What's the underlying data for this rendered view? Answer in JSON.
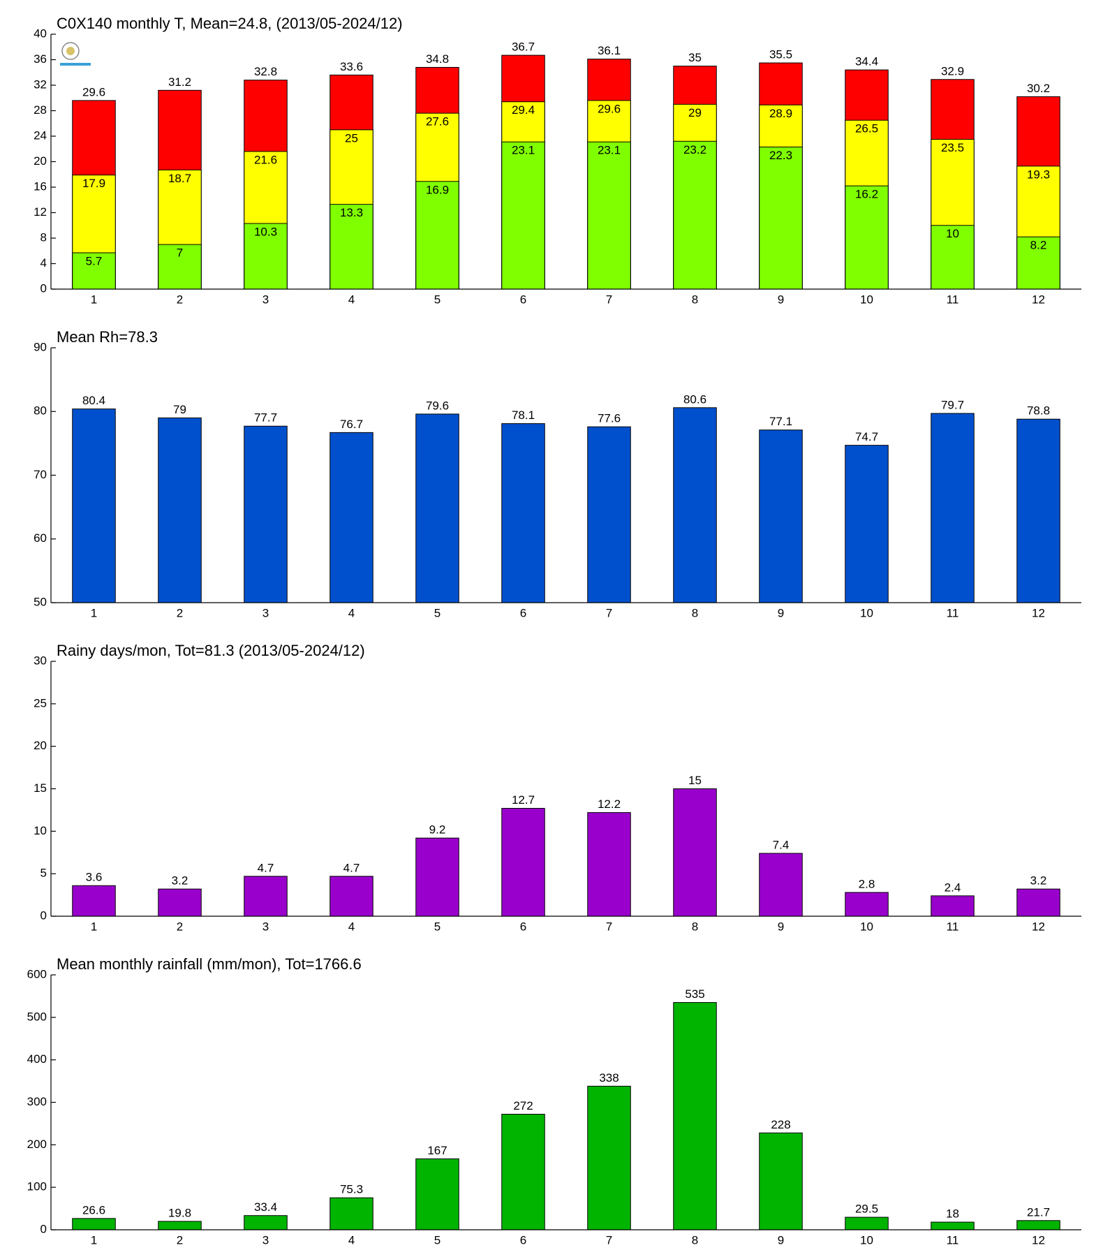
{
  "chart_data": [
    {
      "type": "bar",
      "title": "C0X140 monthly T, Mean=24.8, (2013/05-2024/12)",
      "categories": [
        "1",
        "2",
        "3",
        "4",
        "5",
        "6",
        "7",
        "8",
        "9",
        "10",
        "11",
        "12"
      ],
      "series": [
        {
          "color": "#ff0000",
          "values": [
            29.6,
            31.2,
            32.8,
            33.6,
            34.8,
            36.7,
            36.1,
            35,
            35.5,
            34.4,
            32.9,
            30.2
          ]
        },
        {
          "color": "#ffff00",
          "values": [
            17.9,
            18.7,
            21.6,
            25,
            27.6,
            29.4,
            29.6,
            29,
            28.9,
            26.5,
            23.5,
            19.3
          ]
        },
        {
          "color": "#80ff00",
          "values": [
            5.7,
            7,
            10.3,
            13.3,
            16.9,
            23.1,
            23.1,
            23.2,
            22.3,
            16.2,
            10,
            8.2
          ]
        }
      ],
      "ylim": [
        0,
        40
      ],
      "yticks": [
        0,
        4,
        8,
        12,
        16,
        20,
        24,
        28,
        32,
        36,
        40
      ]
    },
    {
      "type": "bar",
      "title": "Mean Rh=78.3",
      "categories": [
        "1",
        "2",
        "3",
        "4",
        "5",
        "6",
        "7",
        "8",
        "9",
        "10",
        "11",
        "12"
      ],
      "values": [
        80.4,
        79,
        77.7,
        76.7,
        79.6,
        78.1,
        77.6,
        80.6,
        77.1,
        74.7,
        79.7,
        78.8
      ],
      "color": "#0050cd",
      "ylim": [
        50,
        90
      ],
      "yticks": [
        50,
        60,
        70,
        80,
        90
      ]
    },
    {
      "type": "bar",
      "title": "Rainy days/mon, Tot=81.3 (2013/05-2024/12)",
      "categories": [
        "1",
        "2",
        "3",
        "4",
        "5",
        "6",
        "7",
        "8",
        "9",
        "10",
        "11",
        "12"
      ],
      "values": [
        3.6,
        3.2,
        4.7,
        4.7,
        9.2,
        12.7,
        12.2,
        15,
        7.4,
        2.8,
        2.4,
        3.2
      ],
      "color": "#9900cc",
      "ylim": [
        0,
        30
      ],
      "yticks": [
        0,
        5,
        10,
        15,
        20,
        25,
        30
      ]
    },
    {
      "type": "bar",
      "title": "Mean monthly rainfall (mm/mon), Tot=1766.6",
      "categories": [
        "1",
        "2",
        "3",
        "4",
        "5",
        "6",
        "7",
        "8",
        "9",
        "10",
        "11",
        "12"
      ],
      "values": [
        26.6,
        19.8,
        33.4,
        75.3,
        167,
        272,
        338,
        535,
        228,
        29.5,
        18,
        21.7
      ],
      "color": "#00b400",
      "ylim": [
        0,
        600
      ],
      "yticks": [
        0,
        100,
        200,
        300,
        400,
        500,
        600
      ]
    }
  ]
}
